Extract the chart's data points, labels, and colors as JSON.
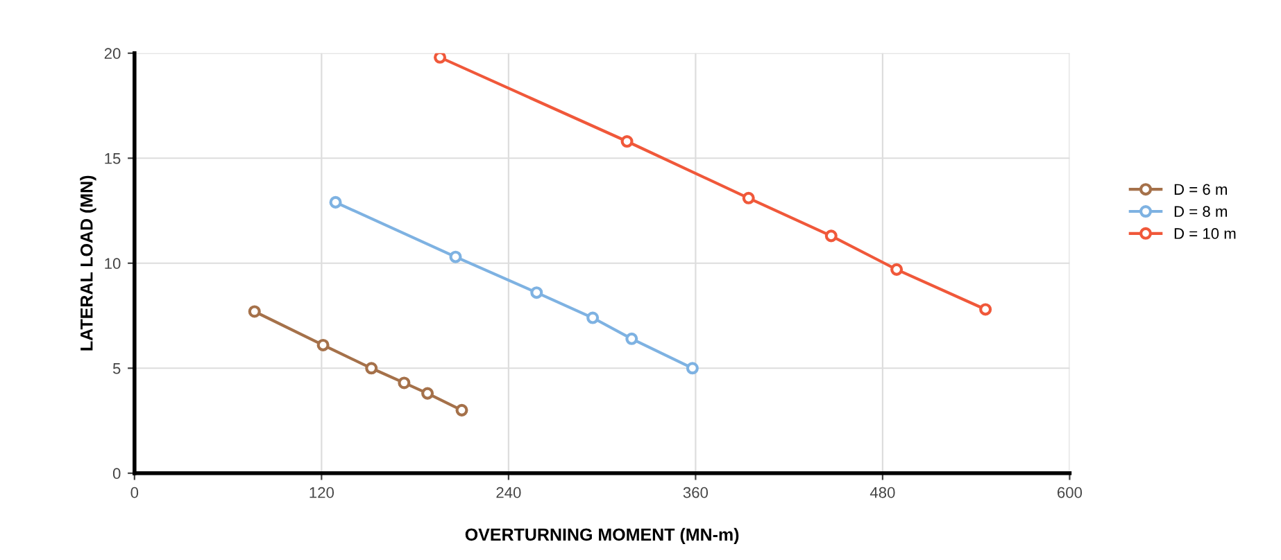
{
  "chart_data": {
    "type": "line",
    "xlabel": "OVERTURNING MOMENT (MN-m)",
    "ylabel": "LATERAL LOAD (MN)",
    "xlim": [
      0,
      600
    ],
    "xticks": [
      0,
      120,
      240,
      360,
      480,
      600
    ],
    "ylim": [
      0,
      20
    ],
    "yticks": [
      0,
      5,
      10,
      15,
      20
    ],
    "grid": true,
    "legend": "right",
    "marker": "circle",
    "line_style": "solid",
    "series": [
      {
        "name": "D = 6 m",
        "color": "#a5714a",
        "x": [
          77,
          121,
          152,
          173,
          188,
          210
        ],
        "values": [
          7.7,
          6.1,
          5.0,
          4.3,
          3.8,
          3.0
        ]
      },
      {
        "name": "D = 8 m",
        "color": "#7eb2e2",
        "x": [
          129,
          206,
          258,
          294,
          319,
          358
        ],
        "values": [
          12.9,
          10.3,
          8.6,
          7.4,
          6.4,
          5.0
        ]
      },
      {
        "name": "D = 10 m",
        "color": "#f0583a",
        "x": [
          196,
          316,
          394,
          447,
          489,
          546
        ],
        "values": [
          19.8,
          15.8,
          13.1,
          11.3,
          9.7,
          7.8
        ]
      }
    ]
  }
}
